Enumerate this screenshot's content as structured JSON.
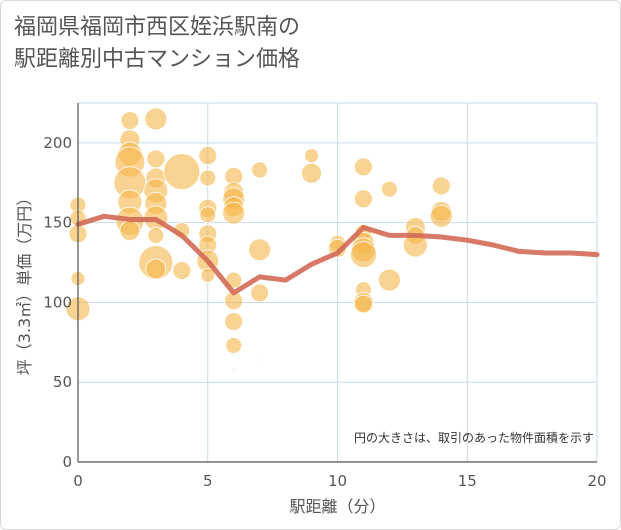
{
  "title_lines": [
    "福岡県福岡市西区姪浜駅南の",
    "駅距離別中古マンション価格"
  ],
  "chart_data": {
    "type": "scatter",
    "xlabel": "駅距離（分）",
    "ylabel": "坪（3.3㎡）単価（万円）",
    "xlim": [
      0,
      20
    ],
    "ylim": [
      0,
      225
    ],
    "xticks": [
      0,
      5,
      10,
      15,
      20
    ],
    "yticks": [
      0,
      50,
      100,
      150,
      200
    ],
    "grid": true,
    "note": "円の大きさは、取引のあった物件面積を示す",
    "colors": {
      "bubble": "#f5b54a",
      "line": "#d36a55",
      "grid": "#c9d9ea",
      "axis": "#555555"
    },
    "bubbles": [
      {
        "x": 0,
        "y": 161,
        "r": 8
      },
      {
        "x": 0,
        "y": 153,
        "r": 8
      },
      {
        "x": 0,
        "y": 143,
        "r": 9
      },
      {
        "x": 0,
        "y": 115,
        "r": 7
      },
      {
        "x": 0,
        "y": 96,
        "r": 12
      },
      {
        "x": 2,
        "y": 214,
        "r": 9
      },
      {
        "x": 2,
        "y": 202,
        "r": 10
      },
      {
        "x": 2,
        "y": 193,
        "r": 12
      },
      {
        "x": 2,
        "y": 188,
        "r": 15
      },
      {
        "x": 2,
        "y": 175,
        "r": 16
      },
      {
        "x": 2,
        "y": 163,
        "r": 12
      },
      {
        "x": 2,
        "y": 151,
        "r": 14
      },
      {
        "x": 2,
        "y": 145,
        "r": 10
      },
      {
        "x": 3,
        "y": 215,
        "r": 11
      },
      {
        "x": 3,
        "y": 190,
        "r": 9
      },
      {
        "x": 3,
        "y": 178,
        "r": 10
      },
      {
        "x": 3,
        "y": 170,
        "r": 12
      },
      {
        "x": 3,
        "y": 162,
        "r": 11
      },
      {
        "x": 3,
        "y": 153,
        "r": 12
      },
      {
        "x": 3,
        "y": 142,
        "r": 8
      },
      {
        "x": 3,
        "y": 125,
        "r": 17
      },
      {
        "x": 3,
        "y": 121,
        "r": 10
      },
      {
        "x": 4,
        "y": 182,
        "r": 18
      },
      {
        "x": 4,
        "y": 145,
        "r": 8
      },
      {
        "x": 4,
        "y": 120,
        "r": 9
      },
      {
        "x": 5,
        "y": 192,
        "r": 9
      },
      {
        "x": 5,
        "y": 178,
        "r": 8
      },
      {
        "x": 5,
        "y": 159,
        "r": 9
      },
      {
        "x": 5,
        "y": 155,
        "r": 8
      },
      {
        "x": 5,
        "y": 143,
        "r": 9
      },
      {
        "x": 5,
        "y": 136,
        "r": 9
      },
      {
        "x": 5,
        "y": 126,
        "r": 11
      },
      {
        "x": 5,
        "y": 117,
        "r": 7
      },
      {
        "x": 6,
        "y": 179,
        "r": 9
      },
      {
        "x": 6,
        "y": 169,
        "r": 10
      },
      {
        "x": 6,
        "y": 165,
        "r": 11
      },
      {
        "x": 6,
        "y": 160,
        "r": 10
      },
      {
        "x": 6,
        "y": 156,
        "r": 11
      },
      {
        "x": 6,
        "y": 114,
        "r": 8
      },
      {
        "x": 6,
        "y": 101,
        "r": 9
      },
      {
        "x": 6,
        "y": 88,
        "r": 9
      },
      {
        "x": 6,
        "y": 73,
        "r": 8
      },
      {
        "x": 6,
        "y": 67,
        "r": 1
      },
      {
        "x": 6,
        "y": 58,
        "r": 1
      },
      {
        "x": 7,
        "y": 183,
        "r": 8
      },
      {
        "x": 7,
        "y": 133,
        "r": 11
      },
      {
        "x": 7,
        "y": 106,
        "r": 9
      },
      {
        "x": 7,
        "y": 64,
        "r": 1
      },
      {
        "x": 9,
        "y": 192,
        "r": 7
      },
      {
        "x": 9,
        "y": 181,
        "r": 10
      },
      {
        "x": 10,
        "y": 137,
        "r": 8
      },
      {
        "x": 10,
        "y": 134,
        "r": 9
      },
      {
        "x": 11,
        "y": 185,
        "r": 9
      },
      {
        "x": 11,
        "y": 165,
        "r": 9
      },
      {
        "x": 11,
        "y": 144,
        "r": 8
      },
      {
        "x": 11,
        "y": 137,
        "r": 11
      },
      {
        "x": 11,
        "y": 133,
        "r": 12
      },
      {
        "x": 11,
        "y": 130,
        "r": 13
      },
      {
        "x": 11,
        "y": 108,
        "r": 8
      },
      {
        "x": 11,
        "y": 100,
        "r": 10
      },
      {
        "x": 11,
        "y": 99,
        "r": 9
      },
      {
        "x": 12,
        "y": 171,
        "r": 8
      },
      {
        "x": 12,
        "y": 114,
        "r": 11
      },
      {
        "x": 13,
        "y": 147,
        "r": 10
      },
      {
        "x": 13,
        "y": 142,
        "r": 9
      },
      {
        "x": 13,
        "y": 136,
        "r": 12
      },
      {
        "x": 14,
        "y": 173,
        "r": 9
      },
      {
        "x": 14,
        "y": 157,
        "r": 10
      },
      {
        "x": 14,
        "y": 154,
        "r": 11
      }
    ],
    "line": {
      "x": [
        0,
        1,
        2,
        3,
        4,
        5,
        6,
        7,
        8,
        9,
        10,
        11,
        12,
        13,
        14,
        15,
        16,
        17,
        18,
        19,
        20
      ],
      "y": [
        149,
        154,
        152,
        152,
        142,
        126,
        106,
        116,
        114,
        124,
        131,
        147,
        142,
        142,
        141,
        139,
        136,
        132,
        131,
        131,
        130
      ]
    }
  }
}
